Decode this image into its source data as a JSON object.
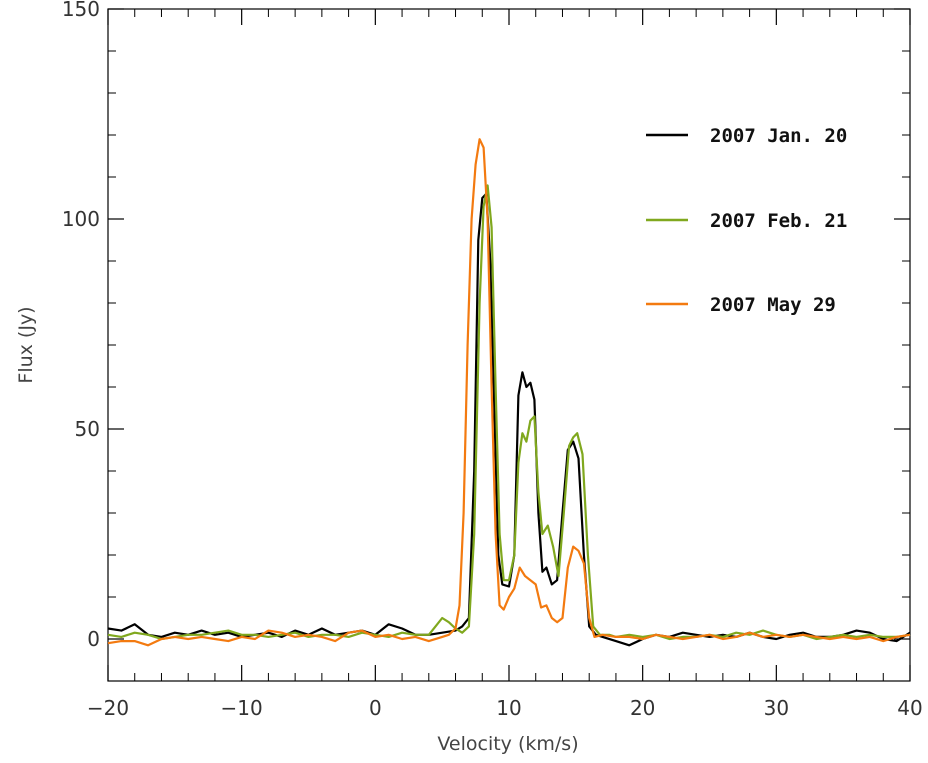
{
  "chart_data": {
    "type": "line",
    "xlabel": "Velocity (km/s)",
    "ylabel": "Flux (Jy)",
    "xlim": [
      -20,
      40
    ],
    "ylim": [
      -10,
      150
    ],
    "x_ticks": [
      -20,
      -10,
      0,
      10,
      20,
      30,
      40
    ],
    "x_tick_labels": [
      "−20",
      "−10",
      "0",
      "10",
      "20",
      "30",
      "40"
    ],
    "y_ticks": [
      0,
      50,
      100,
      150
    ],
    "y_tick_labels": [
      "0",
      "50",
      "100",
      "150"
    ],
    "grid": false,
    "legend_position": "top-right",
    "series": [
      {
        "name": "2007 Jan. 20",
        "color": "#000000",
        "points": [
          [
            -20,
            2.5
          ],
          [
            -19,
            2.0
          ],
          [
            -18,
            3.5
          ],
          [
            -17,
            1.0
          ],
          [
            -16,
            0.5
          ],
          [
            -15,
            1.5
          ],
          [
            -14,
            1.0
          ],
          [
            -13,
            2.0
          ],
          [
            -12,
            1.0
          ],
          [
            -11,
            1.5
          ],
          [
            -10,
            0.5
          ],
          [
            -9,
            1.0
          ],
          [
            -8,
            1.5
          ],
          [
            -7,
            0.5
          ],
          [
            -6,
            2.0
          ],
          [
            -5,
            1.0
          ],
          [
            -4,
            2.5
          ],
          [
            -3,
            1.0
          ],
          [
            -2,
            1.5
          ],
          [
            -1,
            2.0
          ],
          [
            0,
            1.0
          ],
          [
            1,
            3.5
          ],
          [
            2,
            2.5
          ],
          [
            3,
            1.0
          ],
          [
            4,
            1.0
          ],
          [
            5,
            1.5
          ],
          [
            6,
            2.0
          ],
          [
            6.5,
            3.0
          ],
          [
            7,
            5.0
          ],
          [
            7.4,
            40.0
          ],
          [
            7.7,
            95.0
          ],
          [
            8.0,
            105.0
          ],
          [
            8.3,
            106.0
          ],
          [
            8.6,
            90.0
          ],
          [
            8.9,
            55.0
          ],
          [
            9.2,
            20.0
          ],
          [
            9.5,
            13.0
          ],
          [
            10.0,
            12.5
          ],
          [
            10.4,
            20.0
          ],
          [
            10.7,
            58.0
          ],
          [
            11.0,
            63.5
          ],
          [
            11.3,
            60.0
          ],
          [
            11.6,
            61.0
          ],
          [
            11.9,
            57.0
          ],
          [
            12.2,
            30.0
          ],
          [
            12.5,
            16.0
          ],
          [
            12.8,
            17.0
          ],
          [
            13.2,
            13.0
          ],
          [
            13.6,
            14.0
          ],
          [
            14.0,
            30.0
          ],
          [
            14.4,
            45.0
          ],
          [
            14.8,
            47.0
          ],
          [
            15.2,
            43.0
          ],
          [
            15.6,
            20.0
          ],
          [
            16.0,
            3.0
          ],
          [
            16.5,
            1.0
          ],
          [
            17,
            0.5
          ],
          [
            18,
            -0.5
          ],
          [
            19,
            -1.5
          ],
          [
            20,
            0.0
          ],
          [
            21,
            1.0
          ],
          [
            22,
            0.5
          ],
          [
            23,
            1.5
          ],
          [
            24,
            1.0
          ],
          [
            25,
            0.5
          ],
          [
            26,
            1.0
          ],
          [
            27,
            0.5
          ],
          [
            28,
            1.5
          ],
          [
            29,
            0.5
          ],
          [
            30,
            0.0
          ],
          [
            31,
            1.0
          ],
          [
            32,
            1.5
          ],
          [
            33,
            0.5
          ],
          [
            34,
            0.5
          ],
          [
            35,
            1.0
          ],
          [
            36,
            2.0
          ],
          [
            37,
            1.5
          ],
          [
            38,
            0.0
          ],
          [
            39,
            -0.5
          ],
          [
            40,
            1.5
          ]
        ]
      },
      {
        "name": "2007 Feb. 21",
        "color": "#80a81e",
        "points": [
          [
            -20,
            1.0
          ],
          [
            -19,
            0.5
          ],
          [
            -18,
            1.5
          ],
          [
            -17,
            1.0
          ],
          [
            -16,
            0.0
          ],
          [
            -15,
            0.5
          ],
          [
            -14,
            1.0
          ],
          [
            -13,
            1.0
          ],
          [
            -12,
            1.5
          ],
          [
            -11,
            2.0
          ],
          [
            -10,
            1.0
          ],
          [
            -9,
            1.0
          ],
          [
            -8,
            0.5
          ],
          [
            -7,
            1.0
          ],
          [
            -6,
            1.5
          ],
          [
            -5,
            0.5
          ],
          [
            -4,
            1.0
          ],
          [
            -3,
            1.0
          ],
          [
            -2,
            0.5
          ],
          [
            -1,
            1.5
          ],
          [
            0,
            1.0
          ],
          [
            1,
            0.5
          ],
          [
            2,
            1.5
          ],
          [
            3,
            1.0
          ],
          [
            4,
            1.0
          ],
          [
            4.5,
            3.0
          ],
          [
            5,
            5.0
          ],
          [
            5.5,
            4.0
          ],
          [
            6,
            2.5
          ],
          [
            6.5,
            1.5
          ],
          [
            7,
            3.0
          ],
          [
            7.4,
            25.0
          ],
          [
            7.8,
            80.0
          ],
          [
            8.1,
            103.0
          ],
          [
            8.4,
            108.0
          ],
          [
            8.7,
            98.0
          ],
          [
            9.0,
            60.0
          ],
          [
            9.3,
            25.0
          ],
          [
            9.6,
            14.0
          ],
          [
            10.0,
            14.0
          ],
          [
            10.4,
            20.0
          ],
          [
            10.7,
            42.0
          ],
          [
            11.0,
            49.0
          ],
          [
            11.3,
            47.0
          ],
          [
            11.6,
            52.0
          ],
          [
            11.9,
            53.0
          ],
          [
            12.2,
            35.0
          ],
          [
            12.5,
            25.0
          ],
          [
            12.9,
            27.0
          ],
          [
            13.3,
            22.0
          ],
          [
            13.7,
            15.0
          ],
          [
            14.1,
            30.0
          ],
          [
            14.5,
            46.0
          ],
          [
            14.8,
            48.0
          ],
          [
            15.1,
            49.0
          ],
          [
            15.5,
            44.0
          ],
          [
            15.9,
            20.0
          ],
          [
            16.3,
            3.0
          ],
          [
            16.8,
            1.0
          ],
          [
            17.5,
            1.0
          ],
          [
            18,
            0.5
          ],
          [
            19,
            1.0
          ],
          [
            20,
            0.5
          ],
          [
            21,
            1.0
          ],
          [
            22,
            0.0
          ],
          [
            23,
            0.5
          ],
          [
            24,
            0.5
          ],
          [
            25,
            1.0
          ],
          [
            26,
            0.5
          ],
          [
            27,
            1.5
          ],
          [
            28,
            1.0
          ],
          [
            29,
            2.0
          ],
          [
            30,
            1.0
          ],
          [
            31,
            0.5
          ],
          [
            32,
            1.0
          ],
          [
            33,
            0.0
          ],
          [
            34,
            0.5
          ],
          [
            35,
            1.0
          ],
          [
            36,
            0.5
          ],
          [
            37,
            1.0
          ],
          [
            38,
            0.5
          ],
          [
            39,
            0.5
          ],
          [
            40,
            1.0
          ]
        ]
      },
      {
        "name": "2007 May 29",
        "color": "#f37a10",
        "points": [
          [
            -20,
            -1.0
          ],
          [
            -19,
            -0.5
          ],
          [
            -18,
            -0.5
          ],
          [
            -17,
            -1.5
          ],
          [
            -16,
            0.0
          ],
          [
            -15,
            0.5
          ],
          [
            -14,
            0.0
          ],
          [
            -13,
            0.5
          ],
          [
            -12,
            0.0
          ],
          [
            -11,
            -0.5
          ],
          [
            -10,
            0.5
          ],
          [
            -9,
            0.0
          ],
          [
            -8,
            2.0
          ],
          [
            -7,
            1.5
          ],
          [
            -6,
            0.5
          ],
          [
            -5,
            1.0
          ],
          [
            -4,
            0.5
          ],
          [
            -3,
            -0.5
          ],
          [
            -2,
            1.5
          ],
          [
            -1,
            2.0
          ],
          [
            0,
            0.5
          ],
          [
            1,
            1.0
          ],
          [
            2,
            0.0
          ],
          [
            3,
            0.5
          ],
          [
            4,
            -0.5
          ],
          [
            5,
            0.5
          ],
          [
            5.5,
            1.0
          ],
          [
            6,
            2.5
          ],
          [
            6.3,
            8.0
          ],
          [
            6.6,
            30.0
          ],
          [
            6.9,
            70.0
          ],
          [
            7.2,
            100.0
          ],
          [
            7.5,
            113.0
          ],
          [
            7.8,
            119.0
          ],
          [
            8.1,
            117.0
          ],
          [
            8.4,
            100.0
          ],
          [
            8.7,
            60.0
          ],
          [
            9.0,
            25.0
          ],
          [
            9.3,
            8.0
          ],
          [
            9.6,
            7.0
          ],
          [
            10.0,
            10.0
          ],
          [
            10.4,
            12.0
          ],
          [
            10.8,
            17.0
          ],
          [
            11.2,
            15.0
          ],
          [
            11.6,
            14.0
          ],
          [
            12.0,
            13.0
          ],
          [
            12.4,
            7.5
          ],
          [
            12.8,
            8.0
          ],
          [
            13.2,
            5.0
          ],
          [
            13.6,
            4.0
          ],
          [
            14.0,
            5.0
          ],
          [
            14.4,
            17.0
          ],
          [
            14.8,
            22.0
          ],
          [
            15.2,
            21.0
          ],
          [
            15.6,
            18.0
          ],
          [
            16.0,
            5.0
          ],
          [
            16.4,
            0.5
          ],
          [
            17,
            1.0
          ],
          [
            18,
            0.5
          ],
          [
            19,
            0.5
          ],
          [
            20,
            0.0
          ],
          [
            21,
            1.0
          ],
          [
            22,
            0.5
          ],
          [
            23,
            0.0
          ],
          [
            24,
            0.5
          ],
          [
            25,
            1.0
          ],
          [
            26,
            0.0
          ],
          [
            27,
            0.5
          ],
          [
            28,
            1.5
          ],
          [
            29,
            0.5
          ],
          [
            30,
            1.0
          ],
          [
            31,
            0.5
          ],
          [
            32,
            1.0
          ],
          [
            33,
            0.5
          ],
          [
            34,
            0.0
          ],
          [
            35,
            0.5
          ],
          [
            36,
            0.0
          ],
          [
            37,
            0.5
          ],
          [
            38,
            -0.5
          ],
          [
            39,
            0.5
          ],
          [
            40,
            1.0
          ]
        ]
      }
    ]
  }
}
